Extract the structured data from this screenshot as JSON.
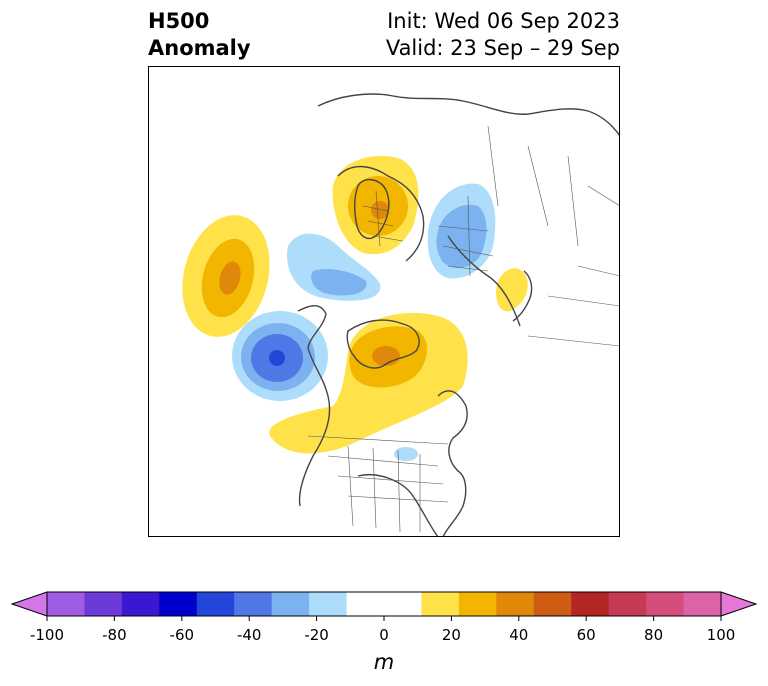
{
  "header": {
    "title_line1": "H500",
    "title_line2": "Anomaly",
    "init": "Init: Wed 06 Sep 2023",
    "valid": "Valid: 23 Sep – 29 Sep"
  },
  "colorbar": {
    "unit": "m",
    "ticks": [
      "-100",
      "-80",
      "-60",
      "-40",
      "-20",
      "0",
      "20",
      "40",
      "60",
      "80",
      "100"
    ],
    "colors": [
      "#d576e8",
      "#a05de3",
      "#6b3ad9",
      "#3a18d1",
      "#0000cc",
      "#2445d9",
      "#4f78e6",
      "#7db2f0",
      "#aedcfb",
      "#ffffff",
      "#ffffff",
      "#ffe24a",
      "#f2b500",
      "#e0880a",
      "#cf5c13",
      "#b42623",
      "#c63a55",
      "#d54e7b",
      "#dd63a9",
      "#e777d9"
    ]
  },
  "anomaly_colors": {
    "pos1": "#ffe24a",
    "pos2": "#f2b500",
    "pos3": "#e0880a",
    "neg1": "#aedcfb",
    "neg2": "#7db2f0",
    "neg3": "#4f78e6",
    "neg4": "#2445d9"
  }
}
